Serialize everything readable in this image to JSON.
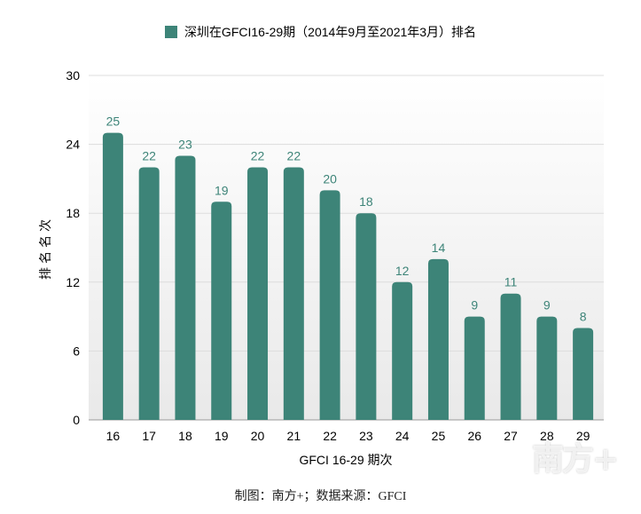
{
  "colors": {
    "bar": "#3d8478",
    "label": "#3d8478",
    "grid": "#dddddd",
    "plot_bg_top": "#ffffff",
    "plot_bg_bottom": "#e9e9e9"
  },
  "chart_data": {
    "type": "bar",
    "title": "",
    "categories": [
      "16",
      "17",
      "18",
      "19",
      "20",
      "21",
      "22",
      "23",
      "24",
      "25",
      "26",
      "27",
      "28",
      "29"
    ],
    "series": [
      {
        "name": "深圳在GFCI16-29期（2014年9月至2021年3月）排名",
        "values": [
          25,
          22,
          23,
          19,
          22,
          22,
          20,
          18,
          12,
          14,
          9,
          11,
          9,
          8
        ]
      }
    ],
    "xlabel": "GFCI 16-29 期次",
    "ylabel": "排名名次",
    "ylim": [
      0,
      30
    ],
    "yticks": [
      0,
      6,
      12,
      18,
      24,
      30
    ],
    "grid": true,
    "legend_position": "top",
    "data_labels": true
  },
  "credit": "制图：南方+；数据来源：GFCI",
  "watermark": "南方+"
}
